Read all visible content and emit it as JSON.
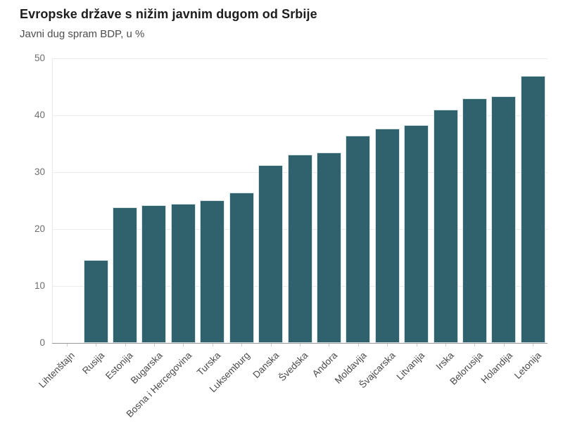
{
  "header": {
    "title": "Evropske države s nižim javnim dugom od Srbije",
    "subtitle": "Javni dug spram BDP, u %"
  },
  "chart_data": {
    "type": "bar",
    "title": "Evropske države s nižim javnim dugom od Srbije",
    "subtitle": "Javni dug spram BDP, u %",
    "categories": [
      "Lihtenštajn",
      "Rusija",
      "Estonija",
      "Bugarska",
      "Bosna i Hercegovina",
      "Turska",
      "Luksemburg",
      "Danska",
      "Švedska",
      "Andora",
      "Moldavija",
      "Švajcarska",
      "Litvanija",
      "Irska",
      "Belorusija",
      "Holandija",
      "Letonija"
    ],
    "values": [
      0,
      14.6,
      23.8,
      24.2,
      24.4,
      25.1,
      26.4,
      31.2,
      33.1,
      33.4,
      36.4,
      37.7,
      38.3,
      41.0,
      43.0,
      43.3,
      46.9
    ],
    "xlabel": "",
    "ylabel": "",
    "ylim": [
      0,
      50
    ],
    "yticks": [
      0,
      10,
      20,
      30,
      40,
      50
    ],
    "grid": "horizontal",
    "legend": "none",
    "bar_color": "#2f626d",
    "bar_border_color": "#d9e4e6"
  }
}
